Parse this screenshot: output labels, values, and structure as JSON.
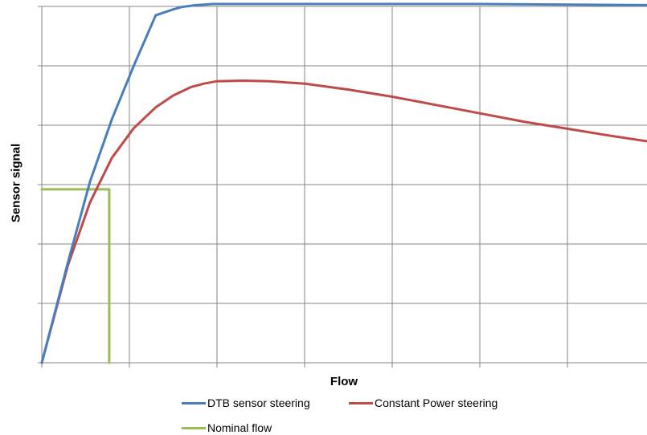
{
  "chart_data": {
    "type": "line",
    "xlabel": "Flow",
    "ylabel": "Sensor signal",
    "xlim": [
      0,
      7
    ],
    "ylim": [
      0,
      6
    ],
    "grid": true,
    "tick_labels": "none",
    "legend_position": "bottom",
    "series": [
      {
        "name": "DTB sensor steering",
        "color": "#4a7ebb",
        "x": [
          0,
          0.3,
          0.55,
          0.8,
          1.05,
          1.3,
          1.5,
          1.6,
          1.75,
          1.95,
          2.1,
          2.3,
          3,
          4,
          5,
          6,
          7
        ],
        "y": [
          0,
          1.7,
          3.05,
          4.1,
          5.0,
          5.85,
          5.95,
          5.99,
          6.02,
          6.04,
          6.04,
          6.04,
          6.04,
          6.04,
          6.04,
          6.03,
          6.02
        ]
      },
      {
        "name": "Constant Power steering",
        "color": "#be4b48",
        "x": [
          0,
          0.3,
          0.55,
          0.8,
          1.05,
          1.3,
          1.5,
          1.7,
          1.85,
          2.0,
          2.3,
          2.6,
          3.0,
          3.5,
          4.0,
          4.5,
          5.0,
          5.5,
          6.0,
          6.5,
          7.0
        ],
        "y": [
          0,
          1.65,
          2.7,
          3.45,
          3.95,
          4.3,
          4.5,
          4.64,
          4.7,
          4.74,
          4.75,
          4.74,
          4.7,
          4.6,
          4.48,
          4.34,
          4.2,
          4.06,
          3.94,
          3.82,
          3.71
        ]
      },
      {
        "name": "Nominal flow",
        "color": "#9bbb59",
        "x": [
          0,
          0.77,
          0.77
        ],
        "y": [
          2.92,
          2.92,
          0
        ]
      }
    ]
  }
}
